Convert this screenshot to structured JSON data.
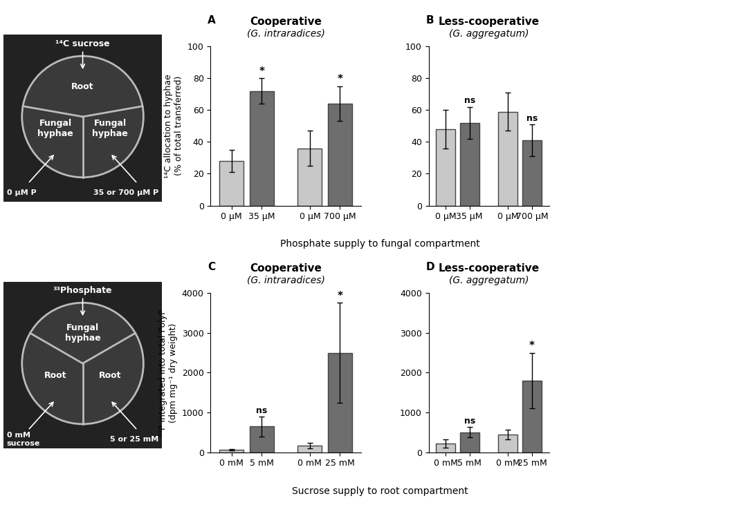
{
  "chart_data": [
    {
      "type": "bar",
      "panel": "A",
      "title": "Cooperative",
      "subtitle": "(G. intraradices)",
      "ylabel": "¹⁴C allocation to hyphae\n(% of total transferred)",
      "xlabel": "Phosphate supply to fungal compartment",
      "categories": [
        "0 µM",
        "35 µM",
        "0 µM",
        "700 µM"
      ],
      "values": [
        28,
        72,
        36,
        64
      ],
      "errors": [
        7,
        8,
        11,
        11
      ],
      "colors": [
        "#c8c8c8",
        "#6e6e6e",
        "#c8c8c8",
        "#6e6e6e"
      ],
      "annotations": [
        null,
        "*",
        null,
        "*"
      ],
      "ylim": [
        0,
        100
      ],
      "yticks": [
        0,
        20,
        40,
        60,
        80,
        100
      ]
    },
    {
      "type": "bar",
      "panel": "B",
      "title": "Less-cooperative",
      "subtitle": "(G. aggregatum)",
      "categories": [
        "0 µM",
        "35 µM",
        "0 µM",
        "700 µM"
      ],
      "values": [
        48,
        52,
        59,
        41
      ],
      "errors": [
        12,
        10,
        12,
        10
      ],
      "colors": [
        "#c8c8c8",
        "#6e6e6e",
        "#c8c8c8",
        "#6e6e6e"
      ],
      "annotations": [
        null,
        "ns",
        null,
        "ns"
      ],
      "ylim": [
        0,
        100
      ],
      "yticks": [
        0,
        20,
        40,
        60,
        80,
        100
      ]
    },
    {
      "type": "bar",
      "panel": "C",
      "title": "Cooperative",
      "subtitle": "(G. intraradices)",
      "ylabel": "³³P integrated into total PolyP\n(dpm mg⁻¹ dry weight)",
      "xlabel": "Sucrose supply to root compartment",
      "categories": [
        "0 mM",
        "5 mM",
        "0 mM",
        "25 mM"
      ],
      "values": [
        60,
        650,
        170,
        2500
      ],
      "errors": [
        20,
        250,
        70,
        1250
      ],
      "colors": [
        "#c8c8c8",
        "#6e6e6e",
        "#c8c8c8",
        "#6e6e6e"
      ],
      "annotations": [
        null,
        "ns",
        null,
        "*"
      ],
      "ylim": [
        0,
        4000
      ],
      "yticks": [
        0,
        1000,
        2000,
        3000,
        4000
      ]
    },
    {
      "type": "bar",
      "panel": "D",
      "title": "Less-cooperative",
      "subtitle": "(G. aggregatum)",
      "categories": [
        "0 mM",
        "5 mM",
        "0 mM",
        "25 mM"
      ],
      "values": [
        220,
        500,
        450,
        1800
      ],
      "errors": [
        100,
        130,
        120,
        700
      ],
      "colors": [
        "#c8c8c8",
        "#6e6e6e",
        "#c8c8c8",
        "#6e6e6e"
      ],
      "annotations": [
        null,
        "ns",
        null,
        "*"
      ],
      "ylim": [
        0,
        4000
      ],
      "yticks": [
        0,
        1000,
        2000,
        3000,
        4000
      ]
    }
  ],
  "dishes": [
    {
      "top_label": "¹⁴C sucrose",
      "top": "Root",
      "left": "Fungal\nhyphae",
      "right": "Fungal\nhyphae",
      "bottom_left": "0 µM P",
      "bottom_right": "35 or 700 µM P"
    },
    {
      "top_label": "³³Phosphate",
      "top": "Fungal\nhyphae",
      "left": "Root",
      "right": "Root",
      "bottom_left": "0 mM\nsucrose",
      "bottom_right": "5 or 25 mM"
    }
  ]
}
